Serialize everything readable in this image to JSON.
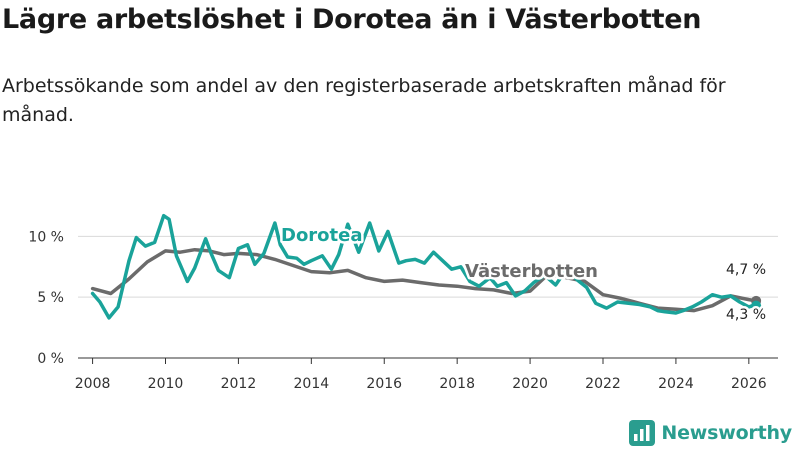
{
  "header": {
    "title": "Lägre arbetslöshet i Dorotea än i Västerbotten",
    "subtitle": "Arbetssökande som andel av den registerbaserade arbetskraften månad för månad."
  },
  "brand": {
    "name": "Newsworthy",
    "color": "#2a9d8f"
  },
  "chart_data": {
    "type": "line",
    "title": "Lägre arbetslöshet i Dorotea än i Västerbotten",
    "xlabel": "",
    "ylabel": "",
    "xlim": [
      2007.6,
      2026.8
    ],
    "ylim": [
      0,
      12
    ],
    "yticks": [
      0,
      5,
      10
    ],
    "ytick_labels": [
      "0 %",
      "5 %",
      "10 %"
    ],
    "xticks": [
      2008,
      2010,
      2012,
      2014,
      2016,
      2018,
      2020,
      2022,
      2024,
      2026
    ],
    "xtick_labels": [
      "2008",
      "2010",
      "2012",
      "2014",
      "2016",
      "2018",
      "2020",
      "2022",
      "2024",
      "2026"
    ],
    "grid": true,
    "series": [
      {
        "name": "Västerbotten",
        "label": "Västerbotten",
        "color": "#6b6b6b",
        "end_label": "4,7 %",
        "x": [
          2008.0,
          2008.5,
          2009.0,
          2009.5,
          2010.0,
          2010.4,
          2010.8,
          2011.2,
          2011.6,
          2012.0,
          2012.5,
          2013.0,
          2013.5,
          2014.0,
          2014.5,
          2015.0,
          2015.5,
          2016.0,
          2016.5,
          2017.0,
          2017.5,
          2018.0,
          2018.5,
          2019.0,
          2019.5,
          2020.0,
          2020.5,
          2021.0,
          2021.5,
          2022.0,
          2022.5,
          2023.0,
          2023.5,
          2024.0,
          2024.5,
          2025.0,
          2025.5,
          2026.0,
          2026.2
        ],
        "values": [
          5.7,
          5.3,
          6.5,
          7.9,
          8.8,
          8.7,
          8.9,
          8.8,
          8.5,
          8.6,
          8.5,
          8.1,
          7.6,
          7.1,
          7.0,
          7.2,
          6.6,
          6.3,
          6.4,
          6.2,
          6.0,
          5.9,
          5.7,
          5.6,
          5.3,
          5.5,
          6.9,
          6.6,
          6.3,
          5.2,
          4.9,
          4.5,
          4.1,
          4.0,
          3.9,
          4.3,
          5.1,
          4.8,
          4.7
        ]
      },
      {
        "name": "Dorotea",
        "label": "Dorotea",
        "color": "#1aa39a",
        "end_label": "4,3 %",
        "x": [
          2008.0,
          2008.2,
          2008.45,
          2008.7,
          2009.0,
          2009.2,
          2009.45,
          2009.7,
          2009.95,
          2010.1,
          2010.3,
          2010.6,
          2010.8,
          2011.1,
          2011.25,
          2011.45,
          2011.75,
          2012.0,
          2012.25,
          2012.45,
          2012.7,
          2013.0,
          2013.15,
          2013.35,
          2013.6,
          2013.8,
          2014.0,
          2014.3,
          2014.55,
          2014.75,
          2015.0,
          2015.3,
          2015.6,
          2015.85,
          2016.1,
          2016.4,
          2016.6,
          2016.85,
          2017.1,
          2017.35,
          2017.6,
          2017.85,
          2018.1,
          2018.35,
          2018.6,
          2018.9,
          2019.1,
          2019.35,
          2019.6,
          2019.85,
          2020.1,
          2020.4,
          2020.7,
          2021.0,
          2021.3,
          2021.55,
          2021.8,
          2022.1,
          2022.4,
          2022.7,
          2023.0,
          2023.3,
          2023.5,
          2023.7,
          2024.0,
          2024.2,
          2024.45,
          2024.7,
          2025.0,
          2025.25,
          2025.5,
          2025.75,
          2026.0,
          2026.1,
          2026.2
        ],
        "values": [
          5.3,
          4.6,
          3.3,
          4.2,
          8.0,
          9.9,
          9.2,
          9.5,
          11.7,
          11.4,
          8.4,
          6.3,
          7.4,
          9.8,
          8.6,
          7.2,
          6.6,
          9.0,
          9.3,
          7.7,
          8.6,
          11.1,
          9.3,
          8.3,
          8.2,
          7.7,
          8.0,
          8.4,
          7.3,
          8.5,
          11.0,
          8.7,
          11.1,
          8.8,
          10.4,
          7.8,
          8.0,
          8.1,
          7.8,
          8.7,
          8.0,
          7.3,
          7.5,
          6.3,
          5.9,
          6.6,
          5.9,
          6.2,
          5.1,
          5.5,
          6.2,
          6.8,
          6.0,
          7.3,
          6.4,
          5.8,
          4.5,
          4.1,
          4.6,
          4.5,
          4.4,
          4.2,
          3.9,
          3.8,
          3.7,
          3.9,
          4.2,
          4.6,
          5.2,
          5.0,
          5.1,
          4.6,
          4.2,
          4.3,
          4.3
        ]
      }
    ]
  }
}
